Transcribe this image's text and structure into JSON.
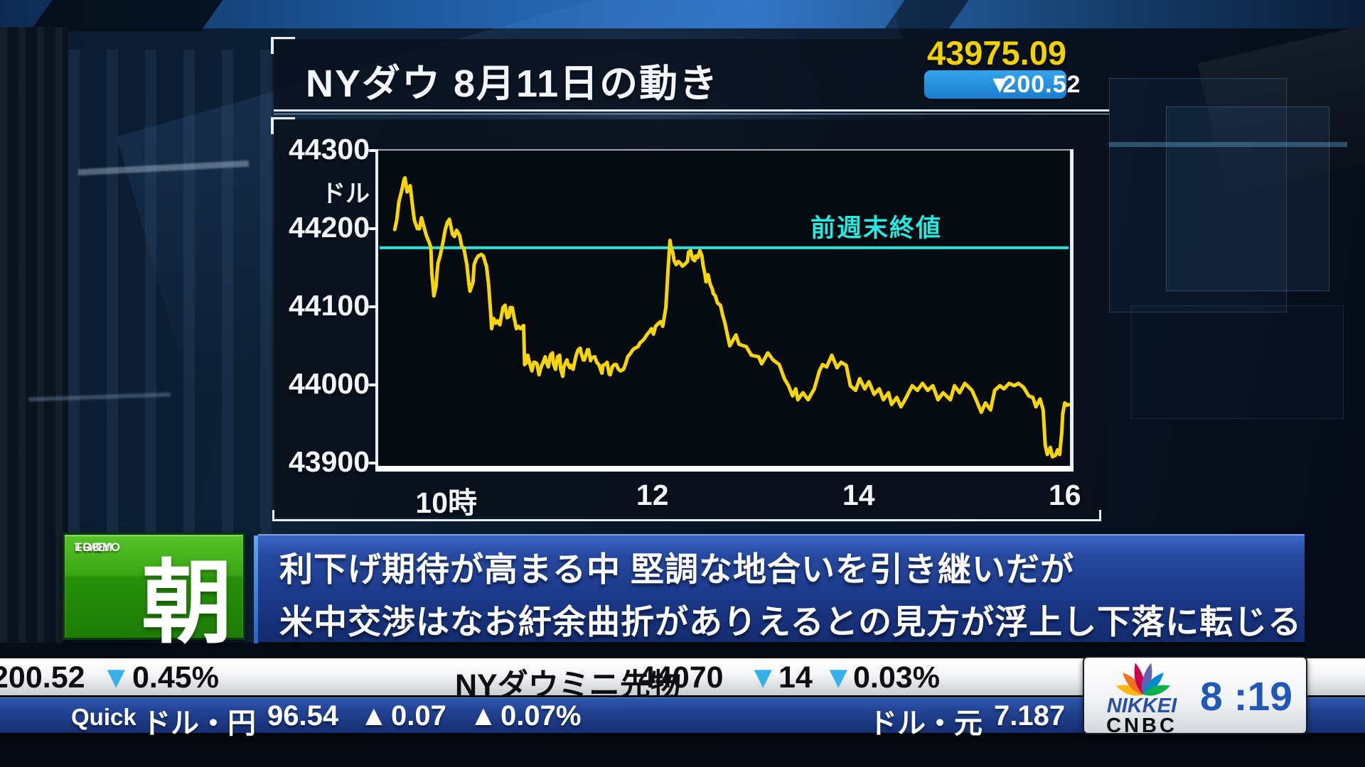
{
  "colors": {
    "line": "#f6d60a",
    "reference": "#22e4dc",
    "price": "#f0d103",
    "badge_bg": "#2196e0",
    "down_triangle": "#35b0e8",
    "up_triangle": "#e6274b"
  },
  "header": {
    "title": "NYダウ 8月11日の動き",
    "price": "43975.09",
    "change_dir": "▼",
    "change": "200.52"
  },
  "chart_data": {
    "type": "line",
    "title": "NYダウ 8月11日の動き",
    "ylabel_unit": "ドル",
    "xlim": [
      9.34,
      16.05
    ],
    "ylim": [
      43900,
      44300
    ],
    "yticks": [
      44300,
      44200,
      44100,
      44000,
      43900
    ],
    "xticks": [
      {
        "value": 10,
        "label": "10時"
      },
      {
        "value": 12,
        "label": "12"
      },
      {
        "value": 14,
        "label": "14"
      },
      {
        "value": 16,
        "label": "16"
      }
    ],
    "reference_line": {
      "label": "前週末終値",
      "value": 44175.61
    },
    "series": [
      {
        "name": "NYダウ",
        "points": [
          [
            9.5,
            44199
          ],
          [
            9.52,
            44211
          ],
          [
            9.54,
            44234
          ],
          [
            9.57,
            44250
          ],
          [
            9.59,
            44263
          ],
          [
            9.6,
            44265
          ],
          [
            9.62,
            44247
          ],
          [
            9.63,
            44252
          ],
          [
            9.65,
            44255
          ],
          [
            9.67,
            44232
          ],
          [
            9.69,
            44211
          ],
          [
            9.72,
            44200
          ],
          [
            9.74,
            44200
          ],
          [
            9.76,
            44214
          ],
          [
            9.79,
            44199
          ],
          [
            9.81,
            44190
          ],
          [
            9.83,
            44184
          ],
          [
            9.85,
            44176
          ],
          [
            9.86,
            44143
          ],
          [
            9.88,
            44114
          ],
          [
            9.9,
            44126
          ],
          [
            9.91,
            44143
          ],
          [
            9.92,
            44156
          ],
          [
            9.94,
            44165
          ],
          [
            9.97,
            44184
          ],
          [
            9.99,
            44199
          ],
          [
            10.01,
            44208
          ],
          [
            10.03,
            44212
          ],
          [
            10.06,
            44193
          ],
          [
            10.08,
            44190
          ],
          [
            10.1,
            44198
          ],
          [
            10.13,
            44191
          ],
          [
            10.15,
            44177
          ],
          [
            10.17,
            44175
          ],
          [
            10.2,
            44154
          ],
          [
            10.22,
            44129
          ],
          [
            10.23,
            44120
          ],
          [
            10.26,
            44132
          ],
          [
            10.27,
            44154
          ],
          [
            10.29,
            44161
          ],
          [
            10.31,
            44165
          ],
          [
            10.34,
            44167
          ],
          [
            10.36,
            44165
          ],
          [
            10.38,
            44156
          ],
          [
            10.39,
            44152
          ],
          [
            10.41,
            44129
          ],
          [
            10.43,
            44093
          ],
          [
            10.44,
            44072
          ],
          [
            10.46,
            44085
          ],
          [
            10.48,
            44079
          ],
          [
            10.5,
            44082
          ],
          [
            10.52,
            44077
          ],
          [
            10.53,
            44085
          ],
          [
            10.55,
            44099
          ],
          [
            10.57,
            44102
          ],
          [
            10.59,
            44086
          ],
          [
            10.61,
            44088
          ],
          [
            10.62,
            44099
          ],
          [
            10.64,
            44099
          ],
          [
            10.66,
            44085
          ],
          [
            10.68,
            44072
          ],
          [
            10.7,
            44075
          ],
          [
            10.72,
            44072
          ],
          [
            10.75,
            44076
          ],
          [
            10.76,
            44026
          ],
          [
            10.78,
            44029
          ],
          [
            10.79,
            44038
          ],
          [
            10.81,
            44027
          ],
          [
            10.83,
            44018
          ],
          [
            10.85,
            44029
          ],
          [
            10.86,
            44029
          ],
          [
            10.88,
            44027
          ],
          [
            10.9,
            44013
          ],
          [
            10.92,
            44023
          ],
          [
            10.93,
            44026
          ],
          [
            10.96,
            44036
          ],
          [
            10.97,
            44029
          ],
          [
            10.99,
            44023
          ],
          [
            11.01,
            44038
          ],
          [
            11.03,
            44041
          ],
          [
            11.04,
            44027
          ],
          [
            11.06,
            44020
          ],
          [
            11.08,
            44036
          ],
          [
            11.1,
            44038
          ],
          [
            11.11,
            44020
          ],
          [
            11.13,
            44011
          ],
          [
            11.14,
            44023
          ],
          [
            11.17,
            44032
          ],
          [
            11.18,
            44027
          ],
          [
            11.2,
            44022
          ],
          [
            11.21,
            44025
          ],
          [
            11.23,
            44020
          ],
          [
            11.26,
            44038
          ],
          [
            11.28,
            44045
          ],
          [
            11.3,
            44047
          ],
          [
            11.31,
            44040
          ],
          [
            11.33,
            44032
          ],
          [
            11.34,
            44032
          ],
          [
            11.37,
            44045
          ],
          [
            11.38,
            44045
          ],
          [
            11.4,
            44031
          ],
          [
            11.41,
            44035
          ],
          [
            11.44,
            44036
          ],
          [
            11.46,
            44029
          ],
          [
            11.48,
            44026
          ],
          [
            11.51,
            44015
          ],
          [
            11.52,
            44025
          ],
          [
            11.55,
            44027
          ],
          [
            11.56,
            44029
          ],
          [
            11.58,
            44014
          ],
          [
            11.59,
            44013
          ],
          [
            11.61,
            44023
          ],
          [
            11.63,
            44026
          ],
          [
            11.65,
            44026
          ],
          [
            11.67,
            44020
          ],
          [
            11.69,
            44018
          ],
          [
            11.72,
            44020
          ],
          [
            11.74,
            44027
          ],
          [
            11.76,
            44036
          ],
          [
            11.79,
            44041
          ],
          [
            11.81,
            44045
          ],
          [
            11.83,
            44047
          ],
          [
            11.86,
            44049
          ],
          [
            11.88,
            44054
          ],
          [
            11.9,
            44056
          ],
          [
            11.92,
            44059
          ],
          [
            11.95,
            44065
          ],
          [
            11.97,
            44068
          ],
          [
            11.99,
            44072
          ],
          [
            12.01,
            44065
          ],
          [
            12.03,
            44075
          ],
          [
            12.06,
            44079
          ],
          [
            12.08,
            44081
          ],
          [
            12.1,
            44075
          ],
          [
            12.13,
            44099
          ],
          [
            12.15,
            44145
          ],
          [
            12.17,
            44185
          ],
          [
            12.18,
            44177
          ],
          [
            12.2,
            44168
          ],
          [
            12.21,
            44159
          ],
          [
            12.23,
            44154
          ],
          [
            12.25,
            44158
          ],
          [
            12.27,
            44156
          ],
          [
            12.29,
            44152
          ],
          [
            12.31,
            44154
          ],
          [
            12.34,
            44158
          ],
          [
            12.35,
            44170
          ],
          [
            12.37,
            44172
          ],
          [
            12.39,
            44161
          ],
          [
            12.41,
            44159
          ],
          [
            12.42,
            44165
          ],
          [
            12.44,
            44163
          ],
          [
            12.46,
            44172
          ],
          [
            12.48,
            44165
          ],
          [
            12.49,
            44154
          ],
          [
            12.51,
            44141
          ],
          [
            12.52,
            44132
          ],
          [
            12.54,
            44141
          ],
          [
            12.56,
            44129
          ],
          [
            12.58,
            44123
          ],
          [
            12.59,
            44117
          ],
          [
            12.61,
            44114
          ],
          [
            12.63,
            44105
          ],
          [
            12.66,
            44102
          ],
          [
            12.68,
            44090
          ],
          [
            12.7,
            44081
          ],
          [
            12.75,
            44050
          ],
          [
            12.81,
            44064
          ],
          [
            12.84,
            44052
          ],
          [
            12.91,
            44049
          ],
          [
            12.96,
            44038
          ],
          [
            13.03,
            44036
          ],
          [
            13.06,
            44027
          ],
          [
            13.12,
            44041
          ],
          [
            13.17,
            44032
          ],
          [
            13.23,
            44026
          ],
          [
            13.28,
            44008
          ],
          [
            13.32,
            43999
          ],
          [
            13.36,
            43986
          ],
          [
            13.39,
            43995
          ],
          [
            13.41,
            43981
          ],
          [
            13.46,
            43990
          ],
          [
            13.51,
            43981
          ],
          [
            13.57,
            43995
          ],
          [
            13.62,
            44018
          ],
          [
            13.65,
            44026
          ],
          [
            13.69,
            44023
          ],
          [
            13.74,
            44038
          ],
          [
            13.79,
            44022
          ],
          [
            13.83,
            44029
          ],
          [
            13.88,
            44025
          ],
          [
            13.92,
            43999
          ],
          [
            13.97,
            43993
          ],
          [
            14.01,
            44008
          ],
          [
            14.06,
            43995
          ],
          [
            14.1,
            44004
          ],
          [
            14.15,
            43988
          ],
          [
            14.2,
            43995
          ],
          [
            14.24,
            43981
          ],
          [
            14.29,
            43990
          ],
          [
            14.32,
            43975
          ],
          [
            14.37,
            43984
          ],
          [
            14.41,
            43972
          ],
          [
            14.45,
            43981
          ],
          [
            14.52,
            43999
          ],
          [
            14.57,
            43993
          ],
          [
            14.62,
            44002
          ],
          [
            14.67,
            43993
          ],
          [
            14.72,
            43999
          ],
          [
            14.77,
            43981
          ],
          [
            14.82,
            43990
          ],
          [
            14.89,
            43981
          ],
          [
            14.93,
            43999
          ],
          [
            14.98,
            43990
          ],
          [
            15.03,
            44002
          ],
          [
            15.1,
            43993
          ],
          [
            15.14,
            43981
          ],
          [
            15.19,
            43965
          ],
          [
            15.23,
            43977
          ],
          [
            15.28,
            43968
          ],
          [
            15.32,
            43993
          ],
          [
            15.37,
            43999
          ],
          [
            15.41,
            43995
          ],
          [
            15.46,
            44002
          ],
          [
            15.51,
            43999
          ],
          [
            15.55,
            44002
          ],
          [
            15.6,
            43997
          ],
          [
            15.65,
            43986
          ],
          [
            15.69,
            43984
          ],
          [
            15.72,
            43972
          ],
          [
            15.76,
            43982
          ],
          [
            15.79,
            43968
          ],
          [
            15.81,
            43923
          ],
          [
            15.83,
            43911
          ],
          [
            15.86,
            43920
          ],
          [
            15.88,
            43908
          ],
          [
            15.91,
            43910
          ],
          [
            15.93,
            43917
          ],
          [
            15.95,
            43911
          ],
          [
            15.97,
            43938
          ],
          [
            15.98,
            43963
          ],
          [
            16.0,
            43977
          ],
          [
            16.02,
            43974
          ],
          [
            16.04,
            43975
          ]
        ]
      }
    ]
  },
  "live_badge": {
    "line1": "LIVE",
    "line2": "FROM",
    "line3": "TOKYO",
    "kanji": "朝"
  },
  "headline": {
    "line1": "利下げ期待が高まる中 堅調な地合いを引き継いだが",
    "line2": "米中交渉はなお紆余曲折がありえるとの見方が浮上し下落に転じる"
  },
  "ticker_top": {
    "change": "200.52",
    "down1": "▼",
    "change_pct": "0.45%",
    "name": "NYダウミニ先物",
    "value": "44070",
    "down2": "▼",
    "diff": "14",
    "down3": "▼",
    "diff_pct": "0.03%"
  },
  "ticker_fx": {
    "source": "Quick",
    "pair1": "ドル・円",
    "pair1_value": "96.54",
    "up1": "▲",
    "pair1_diff": "0.07",
    "up2": "▲",
    "pair1_diff_pct": "0.07%",
    "pair2": "ドル・元",
    "pair2_value": "7.187"
  },
  "branding": {
    "network_top": "NIKKEI",
    "network_bottom": "CNBC",
    "clock": "8 :19"
  }
}
